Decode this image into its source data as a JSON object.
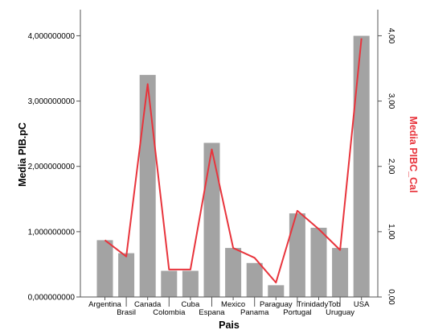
{
  "chart_data": {
    "type": "bar",
    "xlabel": "Pais",
    "ylabel": "Media PIB.pC",
    "y2label": "Media PIBC_Cal",
    "categories": [
      "Argentina",
      "Brasil",
      "Canada",
      "Colombia",
      "Cuba",
      "Espana",
      "Mexico",
      "Panama",
      "Paraguay",
      "Portugal",
      "TrinidadyTob",
      "Uruguay",
      "USA"
    ],
    "y_ticks": [
      "0,000000000",
      "1,000000000",
      "2,000000000",
      "3,000000000",
      "4,000000000"
    ],
    "y2_ticks": [
      "0,00",
      "1,00",
      "2,00",
      "3,00",
      "4,00"
    ],
    "ylim": [
      0,
      4.4
    ],
    "y2lim": [
      0,
      4.4
    ],
    "series": [
      {
        "type": "bar",
        "axis": "left",
        "values": [
          0.87,
          0.67,
          3.4,
          0.4,
          0.4,
          2.36,
          0.75,
          0.52,
          0.18,
          1.28,
          1.06,
          0.75,
          4.0
        ]
      },
      {
        "type": "line",
        "axis": "right",
        "values": [
          0.87,
          0.62,
          3.26,
          0.42,
          0.42,
          2.26,
          0.75,
          0.6,
          0.22,
          1.32,
          1.04,
          0.72,
          3.96
        ]
      }
    ],
    "grid": false,
    "colors": {
      "bar": "#a3a3a3",
      "line": "#e8343c",
      "axis": "#555555",
      "y2label": "#e8343c"
    }
  }
}
